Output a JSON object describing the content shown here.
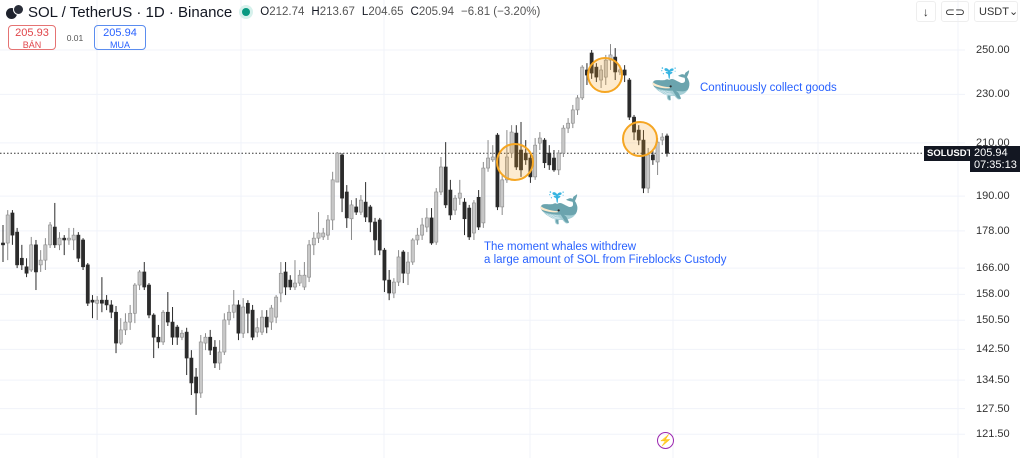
{
  "header": {
    "symbol": "SOL / TetherUS · 1D · Binance",
    "ohlc": {
      "o_label": "O",
      "o": "212.74",
      "h_label": "H",
      "h": "213.67",
      "l_label": "L",
      "l": "204.65",
      "c_label": "C",
      "c": "205.94",
      "change": "−6.81 (−3.20%)"
    },
    "status_color": "#089981"
  },
  "trade": {
    "sell_price": "205.93",
    "sell_label": "BÁN",
    "spread": "0.01",
    "buy_price": "205.94",
    "buy_label": "MUA"
  },
  "toolbar": {
    "arrow_icon": "arrow-down-icon",
    "loop_icon": "loop-icon",
    "currency": "USDT",
    "currency_caret": "⌄"
  },
  "price_label": {
    "symbol": "SOLUSDT",
    "price": "205.94",
    "countdown": "07:35:13"
  },
  "annotations": {
    "top_note": "Continuously collect goods",
    "bottom_note_line1": "The moment whales withdrew",
    "bottom_note_line2": "a large amount of SOL from Fireblocks Custody",
    "whale_icon": "🐳",
    "bolt_icon": "⚡",
    "circle_color": "#f5a623"
  },
  "chart_data": {
    "type": "candlestick",
    "scale": "log",
    "grid": true,
    "ylim": [
      119,
      256
    ],
    "yticks": [
      250.0,
      230.0,
      210.0,
      190.0,
      178.0,
      166.0,
      158.0,
      150.5,
      142.5,
      134.5,
      127.5,
      121.5
    ],
    "ytick_labels": [
      "250.00",
      "230.00",
      "210.00",
      "190.00",
      "178.00",
      "166.00",
      "158.00",
      "150.50",
      "142.50",
      "134.50",
      "127.50",
      "121.50"
    ],
    "last_price": 205.94,
    "up_color": "#c8c8c8",
    "down_color": "#2b2b2b",
    "ohlc": [
      [
        174.0,
        180.0,
        167.9,
        173.4
      ],
      [
        174.0,
        185.1,
        168.5,
        183.4
      ],
      [
        184.1,
        185.1,
        173.4,
        176.6
      ],
      [
        177.6,
        179.0,
        166.0,
        167.0
      ],
      [
        169.1,
        173.4,
        165.4,
        167.0
      ],
      [
        166.4,
        169.1,
        163.2,
        164.4
      ],
      [
        165.4,
        176.0,
        164.8,
        173.4
      ],
      [
        173.4,
        175.0,
        159.3,
        164.8
      ],
      [
        167.0,
        171.7,
        164.8,
        168.5
      ],
      [
        168.5,
        175.6,
        165.4,
        173.4
      ],
      [
        173.4,
        181.0,
        172.4,
        180.0
      ],
      [
        179.3,
        187.6,
        172.4,
        173.4
      ],
      [
        173.4,
        177.6,
        171.7,
        175.6
      ],
      [
        175.6,
        176.6,
        170.1,
        175.0
      ],
      [
        175.0,
        179.0,
        173.4,
        175.6
      ],
      [
        175.0,
        179.0,
        171.7,
        176.6
      ],
      [
        176.6,
        177.6,
        167.9,
        169.1
      ],
      [
        175.0,
        175.6,
        165.4,
        166.4
      ],
      [
        167.0,
        167.6,
        154.6,
        155.4
      ],
      [
        156.3,
        157.8,
        151.1,
        155.7
      ],
      [
        155.4,
        157.5,
        150.6,
        156.3
      ],
      [
        156.3,
        163.2,
        152.8,
        155.4
      ],
      [
        156.3,
        157.8,
        153.4,
        154.9
      ],
      [
        154.9,
        156.3,
        151.1,
        152.8
      ],
      [
        152.8,
        154.6,
        141.5,
        144.2
      ],
      [
        144.2,
        151.1,
        143.7,
        147.8
      ],
      [
        147.8,
        152.5,
        146.4,
        150.0
      ],
      [
        150.0,
        154.9,
        147.8,
        152.5
      ],
      [
        152.5,
        161.4,
        149.7,
        160.8
      ],
      [
        160.8,
        165.4,
        159.3,
        164.8
      ],
      [
        164.8,
        167.9,
        159.3,
        160.2
      ],
      [
        160.8,
        161.4,
        151.1,
        152.0
      ],
      [
        152.0,
        152.5,
        140.2,
        145.8
      ],
      [
        145.8,
        149.2,
        142.8,
        144.5
      ],
      [
        144.5,
        153.4,
        143.7,
        152.8
      ],
      [
        152.8,
        158.7,
        148.9,
        150.0
      ],
      [
        150.0,
        154.3,
        143.7,
        145.8
      ],
      [
        148.6,
        149.2,
        143.7,
        145.8
      ],
      [
        145.8,
        147.8,
        145.0,
        146.9
      ],
      [
        147.2,
        148.4,
        135.8,
        140.2
      ],
      [
        140.2,
        142.3,
        130.8,
        133.8
      ],
      [
        135.3,
        137.6,
        126.0,
        131.3
      ],
      [
        131.3,
        146.4,
        130.1,
        144.5
      ],
      [
        144.2,
        146.9,
        142.3,
        145.8
      ],
      [
        145.8,
        147.8,
        141.0,
        142.3
      ],
      [
        143.1,
        145.0,
        137.6,
        138.9
      ],
      [
        138.9,
        145.0,
        137.1,
        141.8
      ],
      [
        141.8,
        152.5,
        141.0,
        150.6
      ],
      [
        150.6,
        154.9,
        149.2,
        152.8
      ],
      [
        152.8,
        159.3,
        151.1,
        154.9
      ],
      [
        154.9,
        156.3,
        145.0,
        146.9
      ],
      [
        146.9,
        156.9,
        145.6,
        154.3
      ],
      [
        155.4,
        156.3,
        146.9,
        152.5
      ],
      [
        153.4,
        154.9,
        145.0,
        145.8
      ],
      [
        147.2,
        151.1,
        145.8,
        148.4
      ],
      [
        147.2,
        153.4,
        146.4,
        151.4
      ],
      [
        151.4,
        153.4,
        146.9,
        148.6
      ],
      [
        150.0,
        154.9,
        147.8,
        154.0
      ],
      [
        151.4,
        157.8,
        149.7,
        157.2
      ],
      [
        158.4,
        167.9,
        155.7,
        164.4
      ],
      [
        164.8,
        167.9,
        157.8,
        160.2
      ],
      [
        162.3,
        163.8,
        159.3,
        160.2
      ],
      [
        160.2,
        168.5,
        159.3,
        161.4
      ],
      [
        161.4,
        165.4,
        160.5,
        163.8
      ],
      [
        160.2,
        167.9,
        159.3,
        163.8
      ],
      [
        163.2,
        175.0,
        161.7,
        173.4
      ],
      [
        173.4,
        177.6,
        170.1,
        175.6
      ],
      [
        175.6,
        184.4,
        174.0,
        177.3
      ],
      [
        176.0,
        179.0,
        175.0,
        177.3
      ],
      [
        176.6,
        183.4,
        175.0,
        181.7
      ],
      [
        181.7,
        198.9,
        178.3,
        195.9
      ],
      [
        195.1,
        206.4,
        195.1,
        206.0
      ],
      [
        205.3,
        206.0,
        184.4,
        189.3
      ],
      [
        191.5,
        194.0,
        179.0,
        182.4
      ],
      [
        182.1,
        188.6,
        175.0,
        186.9
      ],
      [
        186.2,
        189.3,
        183.4,
        184.4
      ],
      [
        184.4,
        190.4,
        183.4,
        188.6
      ],
      [
        187.9,
        195.1,
        181.0,
        182.7
      ],
      [
        186.2,
        186.9,
        177.6,
        181.0
      ],
      [
        181.0,
        182.4,
        170.1,
        175.0
      ],
      [
        181.7,
        182.4,
        170.1,
        171.7
      ],
      [
        171.7,
        172.4,
        158.7,
        162.3
      ],
      [
        162.3,
        165.4,
        156.3,
        158.4
      ],
      [
        158.4,
        162.9,
        156.9,
        161.7
      ],
      [
        161.7,
        171.7,
        160.5,
        169.5
      ],
      [
        171.1,
        171.7,
        161.4,
        164.4
      ],
      [
        164.4,
        171.1,
        160.8,
        167.9
      ],
      [
        167.9,
        175.6,
        167.0,
        175.0
      ],
      [
        175.0,
        179.0,
        173.4,
        176.6
      ],
      [
        176.6,
        182.4,
        175.0,
        180.0
      ],
      [
        179.3,
        185.8,
        177.6,
        182.4
      ],
      [
        182.4,
        185.8,
        173.4,
        174.0
      ],
      [
        174.3,
        192.9,
        173.4,
        191.5
      ],
      [
        191.5,
        204.5,
        190.4,
        200.7
      ],
      [
        200.7,
        210.3,
        185.8,
        186.9
      ],
      [
        192.2,
        195.9,
        181.7,
        183.4
      ],
      [
        185.1,
        190.4,
        183.4,
        189.3
      ],
      [
        189.3,
        195.9,
        186.9,
        191.1
      ],
      [
        187.9,
        189.3,
        176.6,
        182.1
      ],
      [
        185.8,
        186.9,
        175.0,
        176.0
      ],
      [
        177.3,
        188.6,
        175.0,
        187.6
      ],
      [
        189.6,
        192.2,
        178.3,
        179.3
      ],
      [
        180.7,
        202.6,
        179.0,
        200.3
      ],
      [
        200.3,
        211.1,
        198.9,
        204.1
      ],
      [
        203.4,
        209.1,
        202.6,
        204.5
      ],
      [
        213.1,
        213.9,
        185.1,
        186.2
      ],
      [
        186.2,
        197.7,
        183.4,
        195.9
      ],
      [
        195.9,
        215.1,
        194.8,
        204.5
      ],
      [
        206.0,
        217.1,
        204.1,
        214.3
      ],
      [
        213.9,
        217.1,
        199.6,
        200.7
      ],
      [
        207.2,
        218.4,
        197.0,
        199.6
      ],
      [
        206.0,
        211.1,
        201.5,
        203.4
      ],
      [
        204.1,
        206.4,
        194.8,
        197.0
      ],
      [
        197.0,
        211.9,
        195.9,
        209.1
      ],
      [
        209.9,
        214.3,
        207.2,
        211.9
      ],
      [
        211.1,
        211.9,
        200.3,
        202.3
      ],
      [
        206.0,
        209.1,
        199.6,
        201.5
      ],
      [
        204.1,
        207.2,
        198.9,
        199.6
      ],
      [
        199.6,
        207.2,
        197.7,
        206.0
      ],
      [
        206.0,
        217.1,
        204.5,
        215.9
      ],
      [
        215.9,
        220.0,
        213.9,
        217.9
      ],
      [
        217.9,
        225.5,
        215.9,
        223.4
      ],
      [
        223.4,
        229.7,
        221.3,
        228.5
      ],
      [
        228.5,
        243.0,
        227.6,
        242.1
      ],
      [
        240.8,
        243.9,
        234.1,
        238.5
      ],
      [
        248.6,
        250.0,
        236.8,
        239.4
      ],
      [
        242.1,
        243.9,
        235.4,
        237.6
      ],
      [
        236.3,
        243.0,
        232.8,
        240.8
      ],
      [
        237.6,
        247.7,
        234.1,
        245.3
      ],
      [
        245.3,
        252.8,
        240.8,
        247.7
      ],
      [
        246.7,
        250.9,
        236.3,
        239.9
      ],
      [
        239.9,
        243.0,
        238.5,
        240.8
      ],
      [
        240.8,
        243.0,
        235.4,
        238.5
      ],
      [
        236.3,
        237.2,
        219.2,
        220.4
      ],
      [
        220.4,
        221.3,
        211.1,
        214.3
      ],
      [
        215.1,
        217.1,
        209.1,
        211.1
      ],
      [
        211.1,
        215.1,
        191.1,
        192.9
      ],
      [
        192.9,
        208.0,
        191.1,
        205.3
      ],
      [
        205.3,
        207.2,
        201.5,
        203.4
      ],
      [
        202.6,
        211.9,
        197.7,
        210.3
      ],
      [
        211.1,
        213.9,
        209.1,
        212.3
      ],
      [
        212.74,
        213.67,
        204.65,
        205.94
      ]
    ]
  }
}
